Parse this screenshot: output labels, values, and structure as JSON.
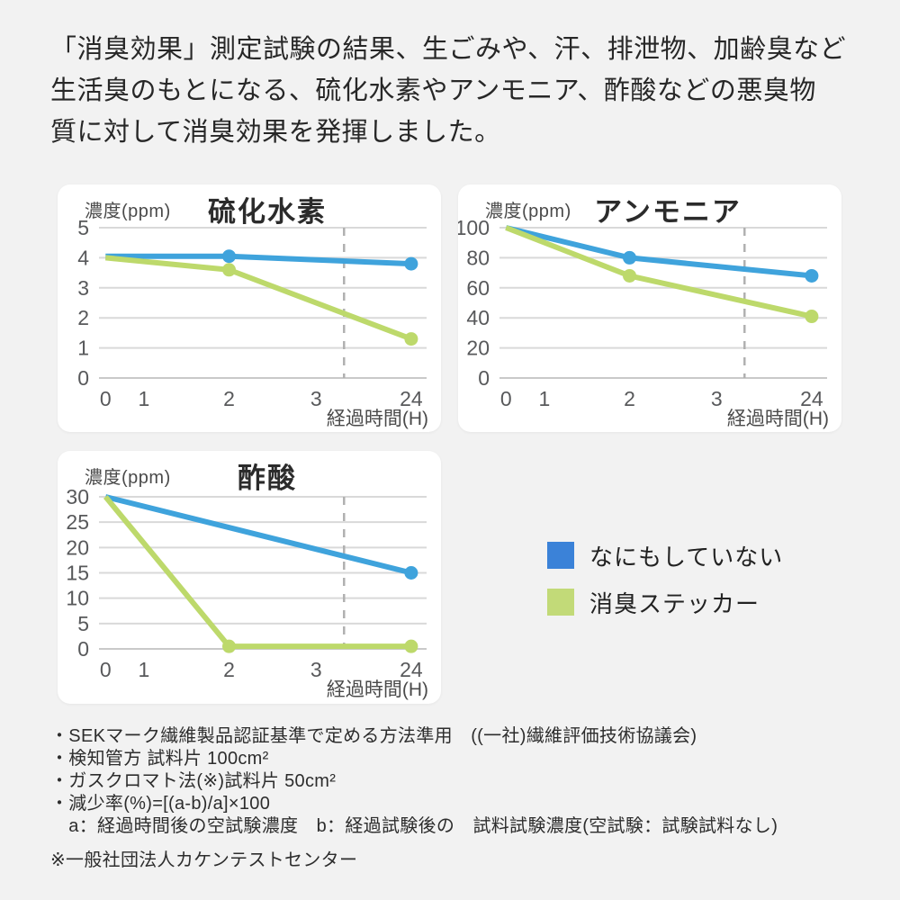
{
  "page": {
    "background": "#f2f2f2"
  },
  "header": {
    "text": "「消臭効果」測定試験の結果、生ごみや、汗、排泄物、加齢臭など\n生活臭のもとになる、硫化水素やアンモニア、酢酸などの悪臭物\n質に対して消臭効果を発揮しました。"
  },
  "colors": {
    "line_blue": "#3fa3dc",
    "line_green": "#bdd96b",
    "legend_blue": "#3b82d8",
    "legend_green": "#c2da78",
    "gridline": "#d9d9d9",
    "axis_line": "#c9c9c9",
    "dashed_line": "#b0b0b0",
    "tick_text": "#58595b"
  },
  "chart_data": [
    {
      "type": "line",
      "title": "硫化水素",
      "y_unit_label": "濃度(ppm)",
      "x_axis_label": "経過時間(H)",
      "x_tick_labels": [
        "0",
        "1",
        "2",
        "3",
        "24"
      ],
      "x_tick_values": [
        0,
        1,
        2,
        3,
        24
      ],
      "y_ticks": [
        0,
        1,
        2,
        3,
        4,
        5
      ],
      "ylim": [
        0,
        5
      ],
      "grid": true,
      "axis_break_dashed_line": true,
      "series": [
        {
          "name": "なにもしていない",
          "color": "#3fa3dc",
          "x": [
            0,
            2,
            24
          ],
          "y": [
            4.05,
            4.05,
            3.8
          ],
          "marker_x": [
            2,
            24
          ]
        },
        {
          "name": "消臭ステッカー",
          "color": "#bdd96b",
          "x": [
            0,
            2,
            24
          ],
          "y": [
            4.0,
            3.6,
            1.3
          ],
          "marker_x": [
            2,
            24
          ]
        }
      ]
    },
    {
      "type": "line",
      "title": "アンモニア",
      "y_unit_label": "濃度(ppm)",
      "x_axis_label": "経過時間(H)",
      "x_tick_labels": [
        "0",
        "1",
        "2",
        "3",
        "24"
      ],
      "x_tick_values": [
        0,
        1,
        2,
        3,
        24
      ],
      "y_ticks": [
        0,
        20,
        40,
        60,
        80,
        100
      ],
      "ylim": [
        0,
        100
      ],
      "grid": true,
      "axis_break_dashed_line": true,
      "series": [
        {
          "name": "なにもしていない",
          "color": "#3fa3dc",
          "x": [
            0,
            2,
            24
          ],
          "y": [
            100,
            80,
            68
          ],
          "marker_x": [
            2,
            24
          ]
        },
        {
          "name": "消臭ステッカー",
          "color": "#bdd96b",
          "x": [
            0,
            2,
            24
          ],
          "y": [
            100,
            68,
            41
          ],
          "marker_x": [
            2,
            24
          ]
        }
      ]
    },
    {
      "type": "line",
      "title": "酢酸",
      "y_unit_label": "濃度(ppm)",
      "x_axis_label": "経過時間(H)",
      "x_tick_labels": [
        "0",
        "1",
        "2",
        "3",
        "24"
      ],
      "x_tick_values": [
        0,
        1,
        2,
        3,
        24
      ],
      "y_ticks": [
        0,
        5,
        10,
        15,
        20,
        25,
        30
      ],
      "ylim": [
        0,
        30
      ],
      "grid": true,
      "axis_break_dashed_line": true,
      "series": [
        {
          "name": "なにもしていない",
          "color": "#3fa3dc",
          "x": [
            0,
            24
          ],
          "y": [
            30,
            15
          ],
          "marker_x": [
            24
          ]
        },
        {
          "name": "消臭ステッカー",
          "color": "#bdd96b",
          "x": [
            0,
            2,
            24
          ],
          "y": [
            30,
            0.5,
            0.5
          ],
          "marker_x": [
            2,
            24
          ]
        }
      ]
    }
  ],
  "legend": {
    "items": [
      {
        "label": "なにもしていない",
        "color": "#3b82d8"
      },
      {
        "label": "消臭ステッカー",
        "color": "#c2da78"
      }
    ]
  },
  "notes": {
    "lines": [
      "・SEKマーク繊維製品認証基準で定める方法準用　((一社)繊維評価技術協議会)",
      "・検知管方 試料片 100cm²",
      "・ガスクロマト法(※)試料片 50cm²",
      "・減少率(%)=[(a-b)/a]×100",
      "　a：経過時間後の空試験濃度　b：経過試験後の　試料試験濃度(空試験：試験試料なし)",
      "※一般社団法人カケンテストセンター"
    ]
  }
}
